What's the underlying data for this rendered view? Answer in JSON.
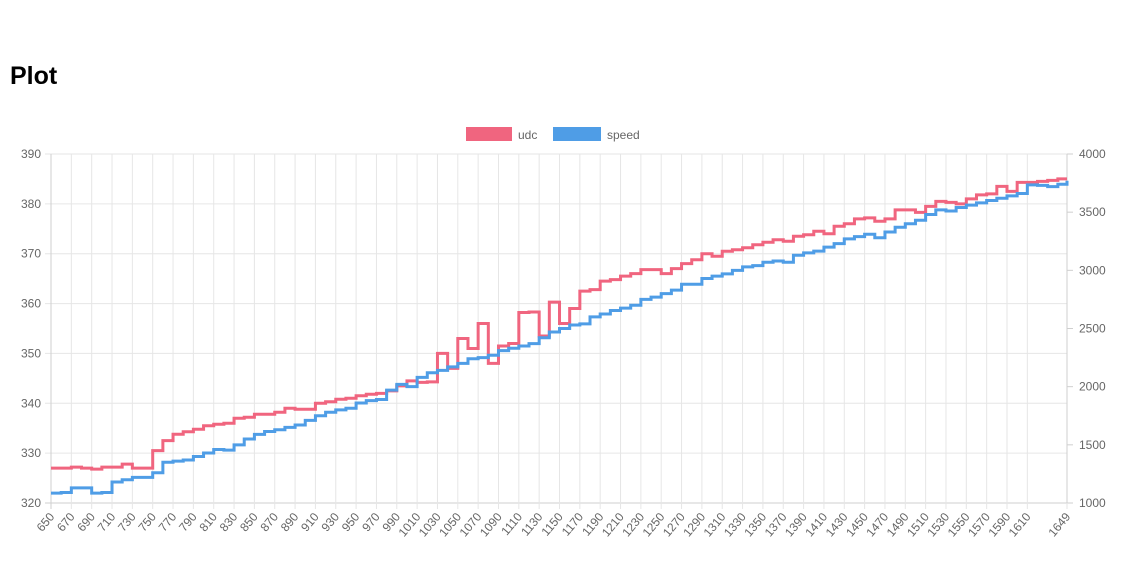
{
  "page": {
    "title": "Plot"
  },
  "chart_data": {
    "type": "line",
    "stepped": true,
    "title": "",
    "legend_position": "top",
    "grid": true,
    "x": [
      650,
      660,
      670,
      680,
      690,
      700,
      710,
      720,
      730,
      740,
      750,
      760,
      770,
      780,
      790,
      800,
      810,
      820,
      830,
      840,
      850,
      860,
      870,
      880,
      890,
      900,
      910,
      920,
      930,
      940,
      950,
      960,
      970,
      980,
      990,
      1000,
      1010,
      1020,
      1030,
      1040,
      1050,
      1060,
      1070,
      1080,
      1090,
      1100,
      1110,
      1120,
      1130,
      1140,
      1150,
      1160,
      1170,
      1180,
      1190,
      1200,
      1210,
      1220,
      1230,
      1240,
      1250,
      1260,
      1270,
      1280,
      1290,
      1300,
      1310,
      1320,
      1330,
      1340,
      1350,
      1360,
      1370,
      1380,
      1390,
      1400,
      1410,
      1420,
      1430,
      1440,
      1450,
      1460,
      1470,
      1480,
      1490,
      1500,
      1510,
      1520,
      1530,
      1540,
      1550,
      1560,
      1570,
      1580,
      1590,
      1600,
      1610,
      1620,
      1630,
      1640,
      1649
    ],
    "x_tick_labels": [
      "650",
      "670",
      "690",
      "710",
      "730",
      "750",
      "770",
      "790",
      "810",
      "830",
      "850",
      "870",
      "890",
      "910",
      "930",
      "950",
      "970",
      "990",
      "1010",
      "1030",
      "1050",
      "1070",
      "1090",
      "1110",
      "1130",
      "1150",
      "1170",
      "1190",
      "1210",
      "1230",
      "1250",
      "1270",
      "1290",
      "1310",
      "1330",
      "1350",
      "1370",
      "1390",
      "1410",
      "1430",
      "1450",
      "1470",
      "1490",
      "1510",
      "1530",
      "1550",
      "1570",
      "1590",
      "1610",
      "1649"
    ],
    "xlim": [
      650,
      1649
    ],
    "y_left": {
      "lim": [
        320,
        390
      ],
      "ticks": [
        "320",
        "330",
        "340",
        "350",
        "360",
        "370",
        "380",
        "390"
      ]
    },
    "y_right": {
      "lim": [
        1000,
        4000
      ],
      "ticks": [
        "1000",
        "1500",
        "2000",
        "2500",
        "3000",
        "3500",
        "4000"
      ]
    },
    "series": [
      {
        "name": "udc",
        "axis": "left",
        "color": "#f0657f",
        "values": [
          327,
          327,
          327.2,
          327,
          326.8,
          327.2,
          327.2,
          327.8,
          327,
          327,
          330.5,
          332.5,
          333.8,
          334.3,
          334.8,
          335.5,
          335.8,
          336,
          337,
          337.2,
          337.8,
          337.8,
          338.2,
          339,
          338.8,
          338.8,
          340,
          340.3,
          340.8,
          341,
          341.5,
          341.8,
          342,
          342.5,
          343.5,
          344.5,
          344.2,
          344.3,
          350,
          347,
          353,
          351,
          356,
          348,
          351.5,
          352,
          358.2,
          358.3,
          353.5,
          360.3,
          356,
          359,
          362.5,
          362.8,
          364.5,
          364.8,
          365.5,
          366,
          366.8,
          366.8,
          366,
          367,
          368,
          368.8,
          370,
          369.5,
          370.5,
          370.8,
          371.2,
          371.8,
          372.3,
          372.8,
          372.5,
          373.5,
          373.8,
          374.5,
          374,
          375.5,
          376,
          377,
          377.2,
          376.5,
          377,
          378.8,
          378.8,
          378.3,
          379.5,
          380.5,
          380.3,
          380,
          381,
          381.8,
          382,
          383.5,
          382.5,
          384.3,
          384.3,
          384.5,
          384.7,
          385,
          385
        ]
      },
      {
        "name": "speed",
        "axis": "right",
        "color": "#4f9de6",
        "values": [
          1085,
          1090,
          1130,
          1130,
          1085,
          1090,
          1180,
          1200,
          1220,
          1220,
          1260,
          1350,
          1360,
          1370,
          1400,
          1430,
          1460,
          1455,
          1500,
          1550,
          1590,
          1615,
          1630,
          1650,
          1670,
          1710,
          1750,
          1780,
          1800,
          1815,
          1860,
          1880,
          1890,
          1970,
          2020,
          2000,
          2080,
          2120,
          2140,
          2170,
          2200,
          2240,
          2250,
          2270,
          2310,
          2330,
          2350,
          2370,
          2420,
          2470,
          2500,
          2530,
          2540,
          2600,
          2625,
          2655,
          2675,
          2700,
          2750,
          2770,
          2800,
          2830,
          2880,
          2880,
          2930,
          2950,
          2970,
          3000,
          3030,
          3040,
          3070,
          3080,
          3070,
          3130,
          3150,
          3165,
          3200,
          3230,
          3270,
          3290,
          3310,
          3280,
          3330,
          3370,
          3400,
          3430,
          3480,
          3520,
          3510,
          3540,
          3560,
          3580,
          3600,
          3620,
          3640,
          3660,
          3735,
          3730,
          3720,
          3740,
          3770
        ]
      }
    ]
  }
}
